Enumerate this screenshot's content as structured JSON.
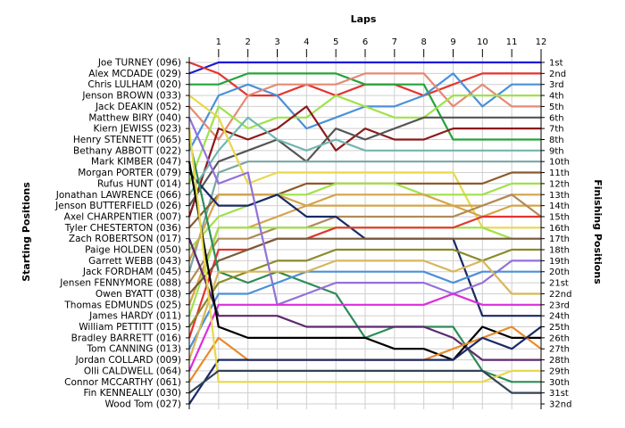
{
  "chart_data": {
    "type": "line",
    "title": "Laps",
    "xlabel": "Laps",
    "ylabel_left": "Starting Positions",
    "ylabel_right": "Finishing Positions",
    "x": [
      0,
      1,
      2,
      3,
      4,
      5,
      6,
      7,
      8,
      9,
      10,
      11,
      12
    ],
    "x_tick_labels": [
      "1",
      "2",
      "3",
      "4",
      "5",
      "6",
      "7",
      "8",
      "9",
      "10",
      "11",
      "12"
    ],
    "y_inverted": true,
    "ylim": [
      1,
      32
    ],
    "grid": true,
    "drivers": [
      "Joe TURNEY (096)",
      "Alex MCDADE (029)",
      "Chris LULHAM (020)",
      "Jenson BROWN (033)",
      "Jack DEAKIN (052)",
      "Matthew BIRY (040)",
      "Kiern JEWISS (023)",
      "Henry STENNETT (065)",
      "Bethany ABBOTT (022)",
      "Mark KIMBER (047)",
      "Morgan PORTER (079)",
      "Rufus HUNT (014)",
      "Jonathan LAWRENCE (066)",
      "Jenson BUTTERFIELD (026)",
      "Axel CHARPENTIER (007)",
      "Tyler CHESTERTON (036)",
      "Zach ROBERTSON (017)",
      "Paige HOLDEN (050)",
      "Garrett WEBB (043)",
      "Jack FORDHAM (045)",
      "Jensen FENNYMORE (088)",
      "Owen BYATT (038)",
      "Thomas EDMUNDS (025)",
      "James HARDY (011)",
      "William PETTITT (015)",
      "Bradley BARRETT (016)",
      "Tom CANNING (013)",
      "Jordan COLLARD (009)",
      "Olli CALDWELL (064)",
      "Connor MCCARTHY (061)",
      "Fin KENNEALLY (030)",
      "Wood Tom (027)"
    ],
    "finishing_labels": [
      "1st",
      "2nd",
      "3rd",
      "4th",
      "5th",
      "6th",
      "7th",
      "8th",
      "9th",
      "10th",
      "11th",
      "12th",
      "13th",
      "14th",
      "15th",
      "16th",
      "17th",
      "18th",
      "19th",
      "20th",
      "21st",
      "22nd",
      "23rd",
      "24th",
      "25th",
      "26th",
      "27th",
      "28th",
      "29th",
      "30th",
      "31st",
      "32nd"
    ],
    "series": [
      {
        "color": "#1a1adb",
        "positions": [
          2,
          1,
          1,
          1,
          1,
          1,
          1,
          1,
          1,
          1,
          1,
          1,
          1
        ]
      },
      {
        "color": "#e3342f",
        "positions": [
          1,
          2,
          4,
          4,
          3,
          4,
          3,
          3,
          4,
          3,
          2,
          2,
          2
        ]
      },
      {
        "color": "#24a33a",
        "positions": [
          3,
          3,
          2,
          2,
          2,
          2,
          3,
          3,
          3,
          8,
          8,
          8,
          8
        ]
      },
      {
        "color": "#4a90d9",
        "positions": [
          9,
          4,
          3,
          4,
          7,
          6,
          5,
          5,
          4,
          2,
          5,
          3,
          3
        ]
      },
      {
        "color": "#e58a74",
        "positions": [
          5,
          8,
          4,
          3,
          3,
          3,
          2,
          2,
          2,
          5,
          3,
          5,
          5
        ]
      },
      {
        "color": "#9fe24a",
        "positions": [
          12,
          5,
          7,
          6,
          6,
          4,
          5,
          6,
          6,
          4,
          4,
          4,
          4
        ]
      },
      {
        "color": "#8b1a1a",
        "positions": [
          15,
          7,
          8,
          7,
          5,
          9,
          7,
          8,
          8,
          7,
          7,
          7,
          7
        ]
      },
      {
        "color": "#555555",
        "positions": [
          14,
          10,
          9,
          8,
          10,
          7,
          8,
          7,
          6,
          6,
          6,
          6,
          6
        ]
      },
      {
        "color": "#6fb7b0",
        "positions": [
          13,
          9,
          6,
          8,
          9,
          8,
          9,
          9,
          9,
          9,
          9,
          9,
          9
        ]
      },
      {
        "color": "#7aa6a5",
        "positions": [
          20,
          11,
          10,
          10,
          10,
          10,
          10,
          10,
          10,
          10,
          10,
          10,
          10
        ]
      },
      {
        "color": "#e8d84a",
        "positions": [
          4,
          6,
          12,
          11,
          11,
          11,
          11,
          11,
          11,
          11,
          16,
          16,
          16
        ]
      },
      {
        "color": "#8b5a2b",
        "positions": [
          16,
          13,
          13,
          13,
          12,
          12,
          12,
          12,
          12,
          12,
          12,
          11,
          11
        ]
      },
      {
        "color": "#9fe24a",
        "positions": [
          18,
          15,
          14,
          13,
          13,
          12,
          12,
          12,
          13,
          13,
          13,
          12,
          12
        ]
      },
      {
        "color": "#d4a44a",
        "positions": [
          19,
          13,
          13,
          13,
          14,
          14,
          14,
          14,
          14,
          14,
          15,
          14,
          14
        ]
      },
      {
        "color": "#d4a44a",
        "positions": [
          23,
          16,
          16,
          15,
          14,
          13,
          13,
          13,
          13,
          14,
          14,
          13,
          13
        ]
      },
      {
        "color": "#b08a5a",
        "positions": [
          21,
          17,
          17,
          16,
          16,
          15,
          15,
          15,
          15,
          15,
          14,
          13,
          15
        ]
      },
      {
        "color": "#1a2a66",
        "positions": [
          11,
          14,
          14,
          13,
          15,
          15,
          17,
          17,
          17,
          17,
          24,
          24,
          24
        ]
      },
      {
        "color": "#9fe24a",
        "positions": [
          24,
          16,
          16,
          16,
          16,
          16,
          16,
          16,
          16,
          16,
          16,
          17,
          17
        ]
      },
      {
        "color": "#e3342f",
        "positions": [
          26,
          18,
          18,
          17,
          17,
          16,
          16,
          16,
          16,
          16,
          15,
          15,
          15
        ]
      },
      {
        "color": "#7a5a3a",
        "positions": [
          22,
          19,
          18,
          17,
          17,
          17,
          17,
          17,
          17,
          17,
          17,
          17,
          17
        ]
      },
      {
        "color": "#2e8b57",
        "positions": [
          8,
          20,
          21,
          20,
          21,
          22,
          26,
          25,
          25,
          25,
          29,
          30,
          30
        ]
      },
      {
        "color": "#8a8a2a",
        "positions": [
          25,
          21,
          20,
          19,
          19,
          18,
          18,
          18,
          18,
          18,
          19,
          18,
          18
        ]
      },
      {
        "color": "#9370db",
        "positions": [
          6,
          12,
          11,
          23,
          22,
          21,
          21,
          21,
          21,
          22,
          21,
          19,
          19
        ]
      },
      {
        "color": "#4a90d9",
        "positions": [
          27,
          22,
          22,
          21,
          20,
          20,
          20,
          20,
          20,
          21,
          20,
          20,
          20
        ]
      },
      {
        "color": "#d8b65a",
        "positions": [
          28,
          20,
          20,
          20,
          20,
          19,
          19,
          19,
          19,
          20,
          19,
          22,
          22
        ]
      },
      {
        "color": "#da2fda",
        "positions": [
          29,
          23,
          23,
          23,
          23,
          23,
          23,
          23,
          23,
          22,
          23,
          23,
          23
        ]
      },
      {
        "color": "#5b2a6e",
        "positions": [
          17,
          24,
          24,
          24,
          25,
          25,
          25,
          25,
          25,
          26,
          28,
          28,
          28
        ]
      },
      {
        "color": "#000000",
        "positions": [
          10,
          25,
          26,
          26,
          26,
          26,
          26,
          27,
          27,
          28,
          25,
          26,
          26
        ]
      },
      {
        "color": "#e88a2a",
        "positions": [
          30,
          26,
          28,
          28,
          28,
          28,
          28,
          28,
          28,
          27,
          26,
          25,
          27
        ]
      },
      {
        "color": "#1a2a66",
        "positions": [
          32,
          28,
          28,
          28,
          28,
          28,
          28,
          28,
          28,
          28,
          26,
          27,
          25
        ]
      },
      {
        "color": "#e8d84a",
        "positions": [
          7,
          30,
          30,
          30,
          30,
          30,
          30,
          30,
          30,
          30,
          30,
          29,
          29
        ]
      },
      {
        "color": "#334455",
        "positions": [
          31,
          29,
          29,
          29,
          29,
          29,
          29,
          29,
          29,
          29,
          29,
          31,
          31
        ]
      }
    ]
  }
}
